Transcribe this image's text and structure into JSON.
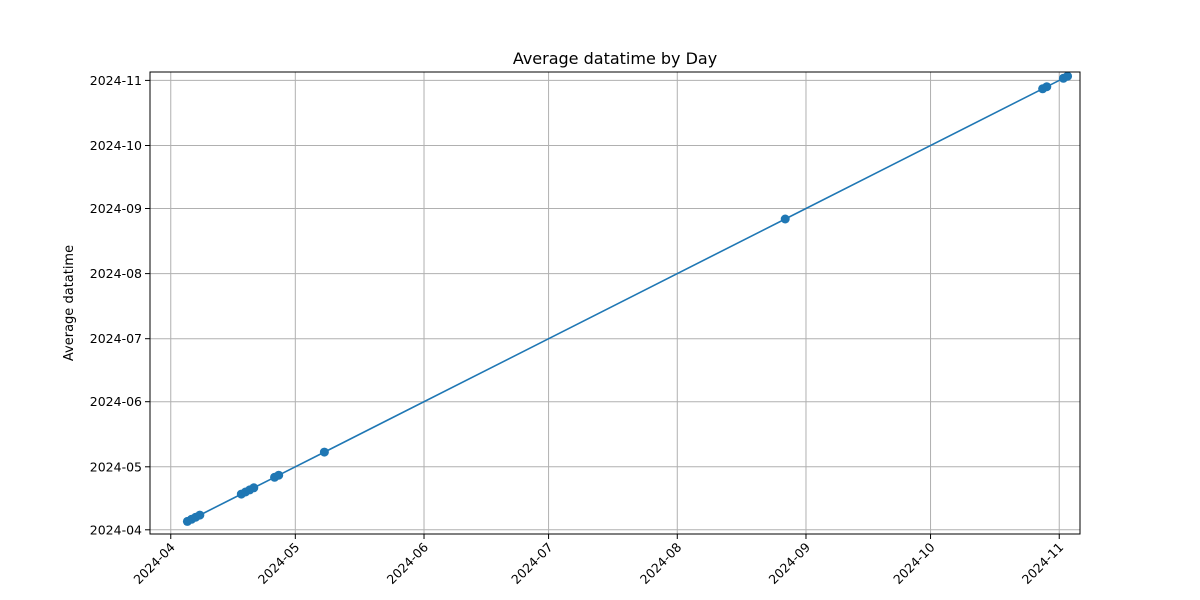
{
  "chart_data": {
    "type": "line",
    "title": "Average datatime by Day",
    "xlabel": "",
    "ylabel": "Average datatime",
    "xlim": [
      "2024-03-27",
      "2024-11-06"
    ],
    "ylim": [
      "2024-03-30",
      "2024-11-05"
    ],
    "x_ticks": [
      "2024-04",
      "2024-05",
      "2024-06",
      "2024-07",
      "2024-08",
      "2024-09",
      "2024-10",
      "2024-11"
    ],
    "y_ticks": [
      "2024-04",
      "2024-05",
      "2024-06",
      "2024-07",
      "2024-08",
      "2024-09",
      "2024-10",
      "2024-11"
    ],
    "grid": true,
    "marker": "circle",
    "color": "#1f77b4",
    "series": [
      {
        "x": [
          "2024-04-05",
          "2024-04-06",
          "2024-04-07",
          "2024-04-08",
          "2024-04-18",
          "2024-04-19",
          "2024-04-20",
          "2024-04-21",
          "2024-04-26",
          "2024-04-27",
          "2024-05-08",
          "2024-08-27",
          "2024-10-28",
          "2024-10-29",
          "2024-11-02",
          "2024-11-03"
        ],
        "y": [
          "2024-04-05",
          "2024-04-06",
          "2024-04-07",
          "2024-04-08",
          "2024-04-18",
          "2024-04-19",
          "2024-04-20",
          "2024-04-21",
          "2024-04-26",
          "2024-04-27",
          "2024-05-08",
          "2024-08-27",
          "2024-10-28",
          "2024-10-29",
          "2024-11-02",
          "2024-11-03"
        ]
      }
    ]
  }
}
